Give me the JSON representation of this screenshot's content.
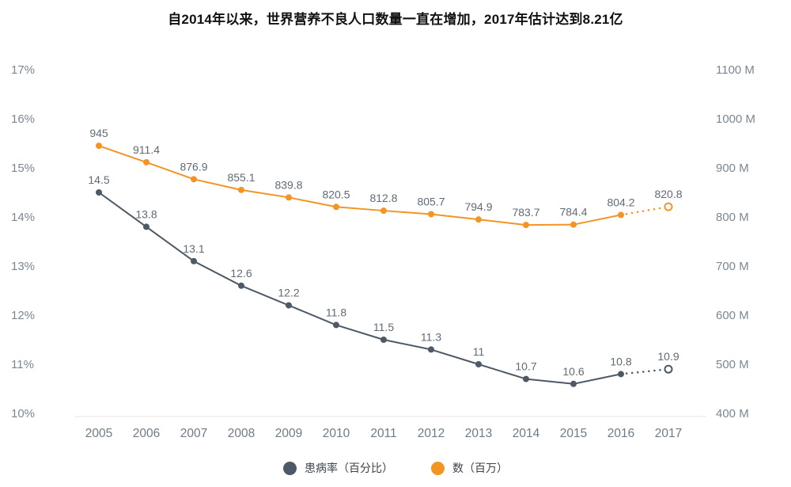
{
  "title": "自2014年以来，世界营养不良人口数量一直在增加，2017年估计达到8.21亿",
  "legend": {
    "items": [
      {
        "label": "患病率（百分比）"
      },
      {
        "label": "数（百万）"
      }
    ]
  },
  "colors": {
    "prevalence_series": "#4d5966",
    "count_series": "#f39423",
    "axis_text": "#7b8793",
    "data_label_text": "#5f6b77",
    "axis_line": "#e6e6e6"
  },
  "chart_data": {
    "type": "line",
    "x": [
      2005,
      2006,
      2007,
      2008,
      2009,
      2010,
      2011,
      2012,
      2013,
      2014,
      2015,
      2016,
      2017
    ],
    "series": [
      {
        "id": "prevalence",
        "name": "患病率（百分比）",
        "axis": "left",
        "color": "#4d5966",
        "values": [
          14.5,
          13.8,
          13.1,
          12.6,
          12.2,
          11.8,
          11.5,
          11.3,
          11,
          10.7,
          10.6,
          10.8,
          10.9
        ],
        "last_point_estimated": true
      },
      {
        "id": "count",
        "name": "数（百万）",
        "axis": "right",
        "color": "#f39423",
        "values": [
          945,
          911.4,
          876.9,
          855.1,
          839.8,
          820.5,
          812.8,
          805.7,
          794.9,
          783.7,
          784.4,
          804.2,
          820.8
        ],
        "last_point_estimated": true
      }
    ],
    "left_axis": {
      "min": 10,
      "max": 17,
      "ticks": [
        10,
        11,
        12,
        13,
        14,
        15,
        16,
        17
      ],
      "suffix": "%"
    },
    "right_axis": {
      "min": 400,
      "max": 1100,
      "ticks": [
        400,
        500,
        600,
        700,
        800,
        900,
        1000,
        1100
      ],
      "suffix": " M"
    },
    "grid": false,
    "legend_position": "bottom",
    "title": "自2014年以来，世界营养不良人口数量一直在增加，2017年估计达到8.21亿"
  }
}
